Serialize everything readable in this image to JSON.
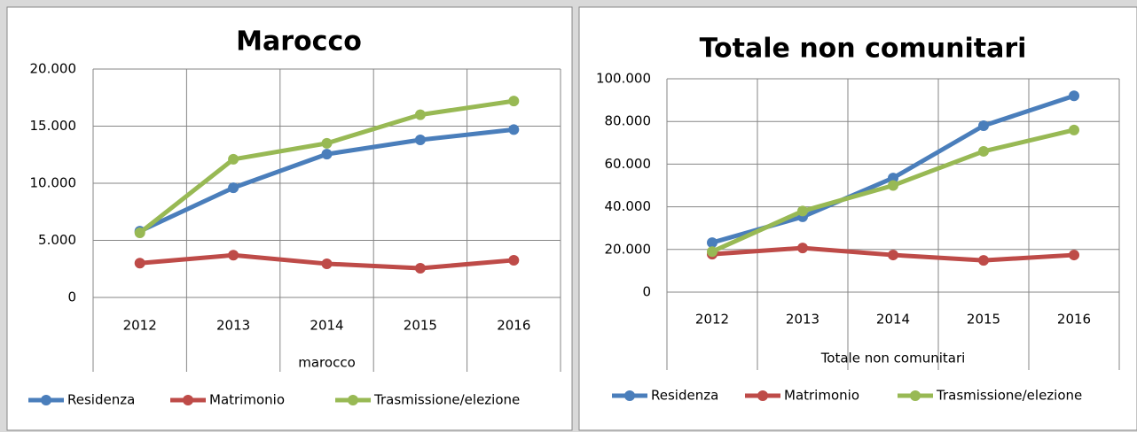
{
  "chart_data": [
    {
      "type": "line",
      "title": "Marocco",
      "x_label": "marocco",
      "categories": [
        "2012",
        "2013",
        "2014",
        "2015",
        "2016"
      ],
      "series": [
        {
          "name": "Residenza",
          "color": "#4a7ebb",
          "values": [
            5800,
            9600,
            12550,
            13800,
            14700
          ]
        },
        {
          "name": "Matrimonio",
          "color": "#be4b48",
          "values": [
            3000,
            3700,
            2950,
            2560,
            3260
          ]
        },
        {
          "name": "Trasmissione/elezione",
          "color": "#98b954",
          "values": [
            5660,
            12100,
            13500,
            16000,
            17200
          ]
        }
      ],
      "ylim": [
        0,
        20000
      ],
      "yticks": [
        0,
        {
          "value": 5000,
          "label": "5.000"
        },
        {
          "value": 10000,
          "label": "10.000"
        },
        {
          "value": 15000,
          "label": "15.000"
        },
        {
          "value": 20000,
          "label": "20.000"
        }
      ],
      "grid": true,
      "legend": "bottom"
    },
    {
      "type": "line",
      "title": "Totale non comunitari",
      "x_label": "Totale non comunitari",
      "categories": [
        "2012",
        "2013",
        "2014",
        "2015",
        "2016"
      ],
      "series": [
        {
          "name": "Residenza",
          "color": "#4a7ebb",
          "values": [
            23200,
            35300,
            53500,
            78000,
            92000
          ]
        },
        {
          "name": "Matrimonio",
          "color": "#be4b48",
          "values": [
            17800,
            20700,
            17400,
            14900,
            17400
          ]
        },
        {
          "name": "Trasmissione/elezione",
          "color": "#98b954",
          "values": [
            19000,
            38000,
            50000,
            66000,
            76000
          ]
        }
      ],
      "ylim": [
        0,
        100000
      ],
      "yticks": [
        0,
        {
          "value": 20000,
          "label": "20.000"
        },
        {
          "value": 40000,
          "label": "40.000"
        },
        {
          "value": 60000,
          "label": "60.000"
        },
        {
          "value": 80000,
          "label": "80.000"
        },
        {
          "value": 100000,
          "label": "100.000"
        }
      ],
      "grid": true,
      "legend": "bottom"
    }
  ]
}
